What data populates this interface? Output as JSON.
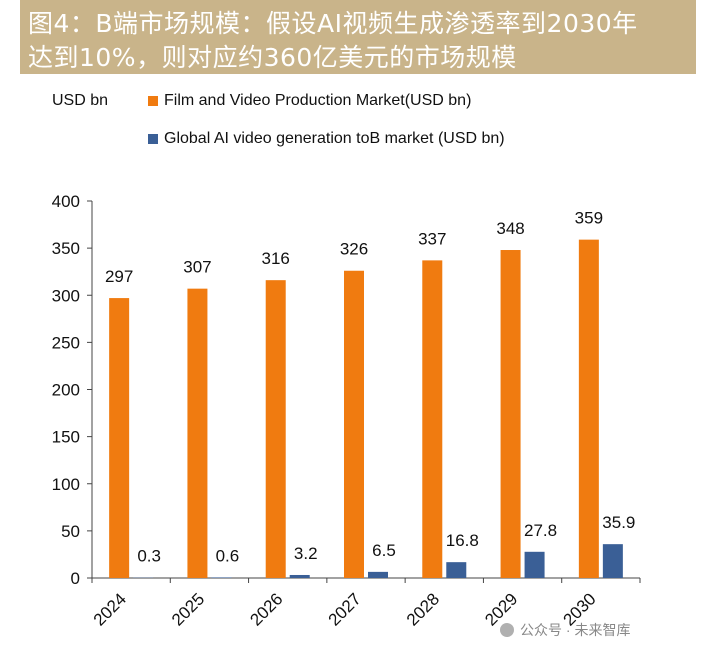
{
  "header": {
    "title_line1": "图4：B端市场规模：假设AI视频生成渗透率到2030年",
    "title_line2": "达到10%，则对应约360亿美元的市场规模"
  },
  "watermark": {
    "text": "公众号 · 未来智库"
  },
  "colors": {
    "series_1": "#f07b10",
    "series_2": "#3a5f96",
    "title_band": "#c9b48a"
  },
  "chart_data": {
    "type": "bar",
    "title": "",
    "unit_label": "USD bn",
    "categories": [
      "2024",
      "2025",
      "2026",
      "2027",
      "2028",
      "2029",
      "2030"
    ],
    "series": [
      {
        "name": "Film and Video Production Market(USD bn)",
        "values": [
          297,
          307,
          316,
          326,
          337,
          348,
          359
        ]
      },
      {
        "name": "Global AI video generation toB market (USD bn)",
        "values": [
          0.3,
          0.6,
          3.2,
          6.5,
          16.8,
          27.8,
          35.9
        ]
      }
    ],
    "y_ticks": [
      0,
      50,
      100,
      150,
      200,
      250,
      300,
      350,
      400
    ],
    "ylim": [
      0,
      400
    ],
    "grid": false,
    "legend_position": "top"
  }
}
